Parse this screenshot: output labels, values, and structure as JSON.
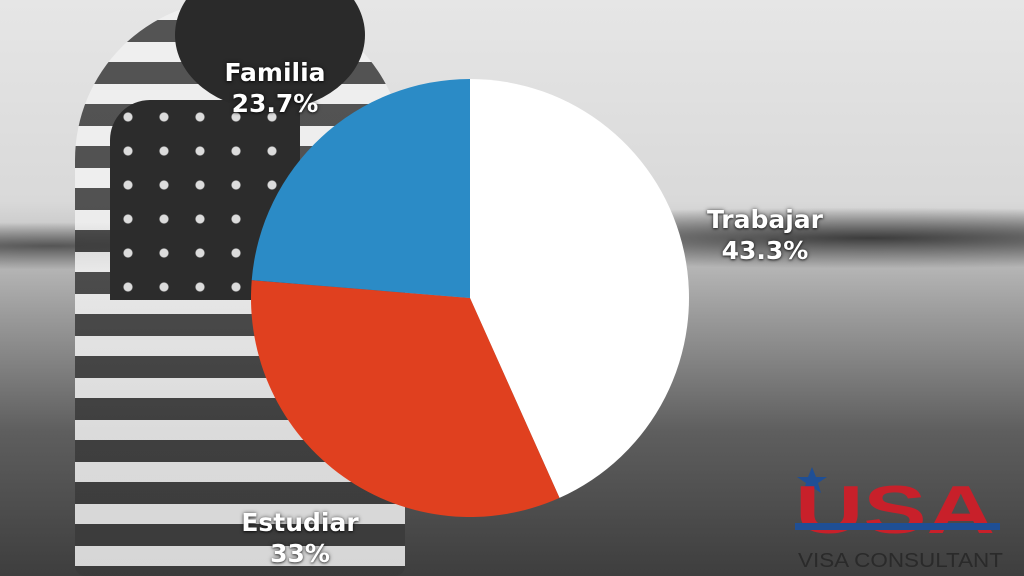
{
  "chart_data": {
    "type": "pie",
    "slices": [
      {
        "label": "Trabajar",
        "value": 43.3,
        "value_label": "43.3%",
        "color": "#ffffff"
      },
      {
        "label": "Estudiar",
        "value": 33,
        "value_label": "33%",
        "color": "#e0401f"
      },
      {
        "label": "Familia",
        "value": 23.7,
        "value_label": "23.7%",
        "color": "#2b8bc6"
      }
    ],
    "start": "12 o'clock",
    "direction": "clockwise"
  },
  "logo": {
    "main": "USA",
    "sub": "VISA CONSULTANT"
  },
  "colors": {
    "logo_red": "#c8202a",
    "logo_blue": "#1f4f95"
  }
}
